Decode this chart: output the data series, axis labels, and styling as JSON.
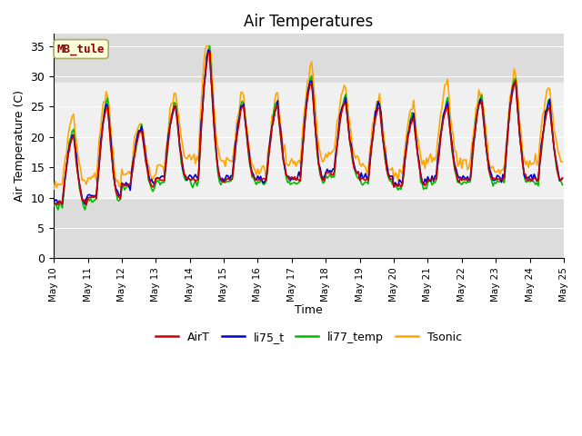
{
  "title": "Air Temperatures",
  "xlabel": "Time",
  "ylabel": "Air Temperature (C)",
  "ylim": [
    0,
    37
  ],
  "yticks": [
    0,
    5,
    10,
    15,
    20,
    25,
    30,
    35
  ],
  "annotation": "MB_tule",
  "annotation_color": "#8B0000",
  "annotation_bg": "#FFFFDD",
  "line_colors": {
    "AirT": "#CC0000",
    "li75_t": "#0000CC",
    "li77_temp": "#00BB00",
    "Tsonic": "#FFA500"
  },
  "x_ticks": [
    10,
    11,
    12,
    13,
    14,
    15,
    16,
    17,
    18,
    19,
    20,
    21,
    22,
    23,
    24,
    25
  ],
  "x_tick_labels": [
    "May 10",
    "May 11",
    "May 12",
    "May 13",
    "May 14",
    "May 15",
    "May 16",
    "May 17",
    "May 18",
    "May 19",
    "May 20",
    "May 21",
    "May 22",
    "May 23",
    "May 24",
    "May 25"
  ],
  "gray_band_low": 10,
  "gray_band_high": 29,
  "plot_bg_outer": "#DCDCDC",
  "plot_bg_inner": "#F0F0F0",
  "grid_color": "#FFFFFF"
}
